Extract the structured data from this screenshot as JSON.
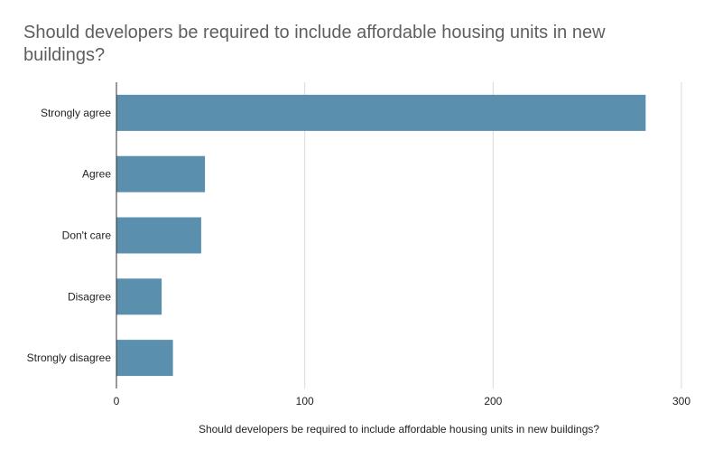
{
  "chart_data": {
    "type": "bar",
    "orientation": "horizontal",
    "title": "Should developers be required to include affordable housing units in new buildings?",
    "xlabel": "Should developers be required to include affordable housing units in new buildings?",
    "ylabel": "",
    "categories": [
      "Strongly agree",
      "Agree",
      "Don't care",
      "Disagree",
      "Strongly disagree"
    ],
    "values": [
      281,
      47,
      45,
      24,
      30
    ],
    "xlim": [
      0,
      300
    ],
    "xticks": [
      0,
      100,
      200,
      300
    ],
    "grid": true,
    "legend": "none",
    "bar_color": "#5b8fae",
    "grid_color": "#d9d9d9",
    "axis_color": "#333333"
  }
}
